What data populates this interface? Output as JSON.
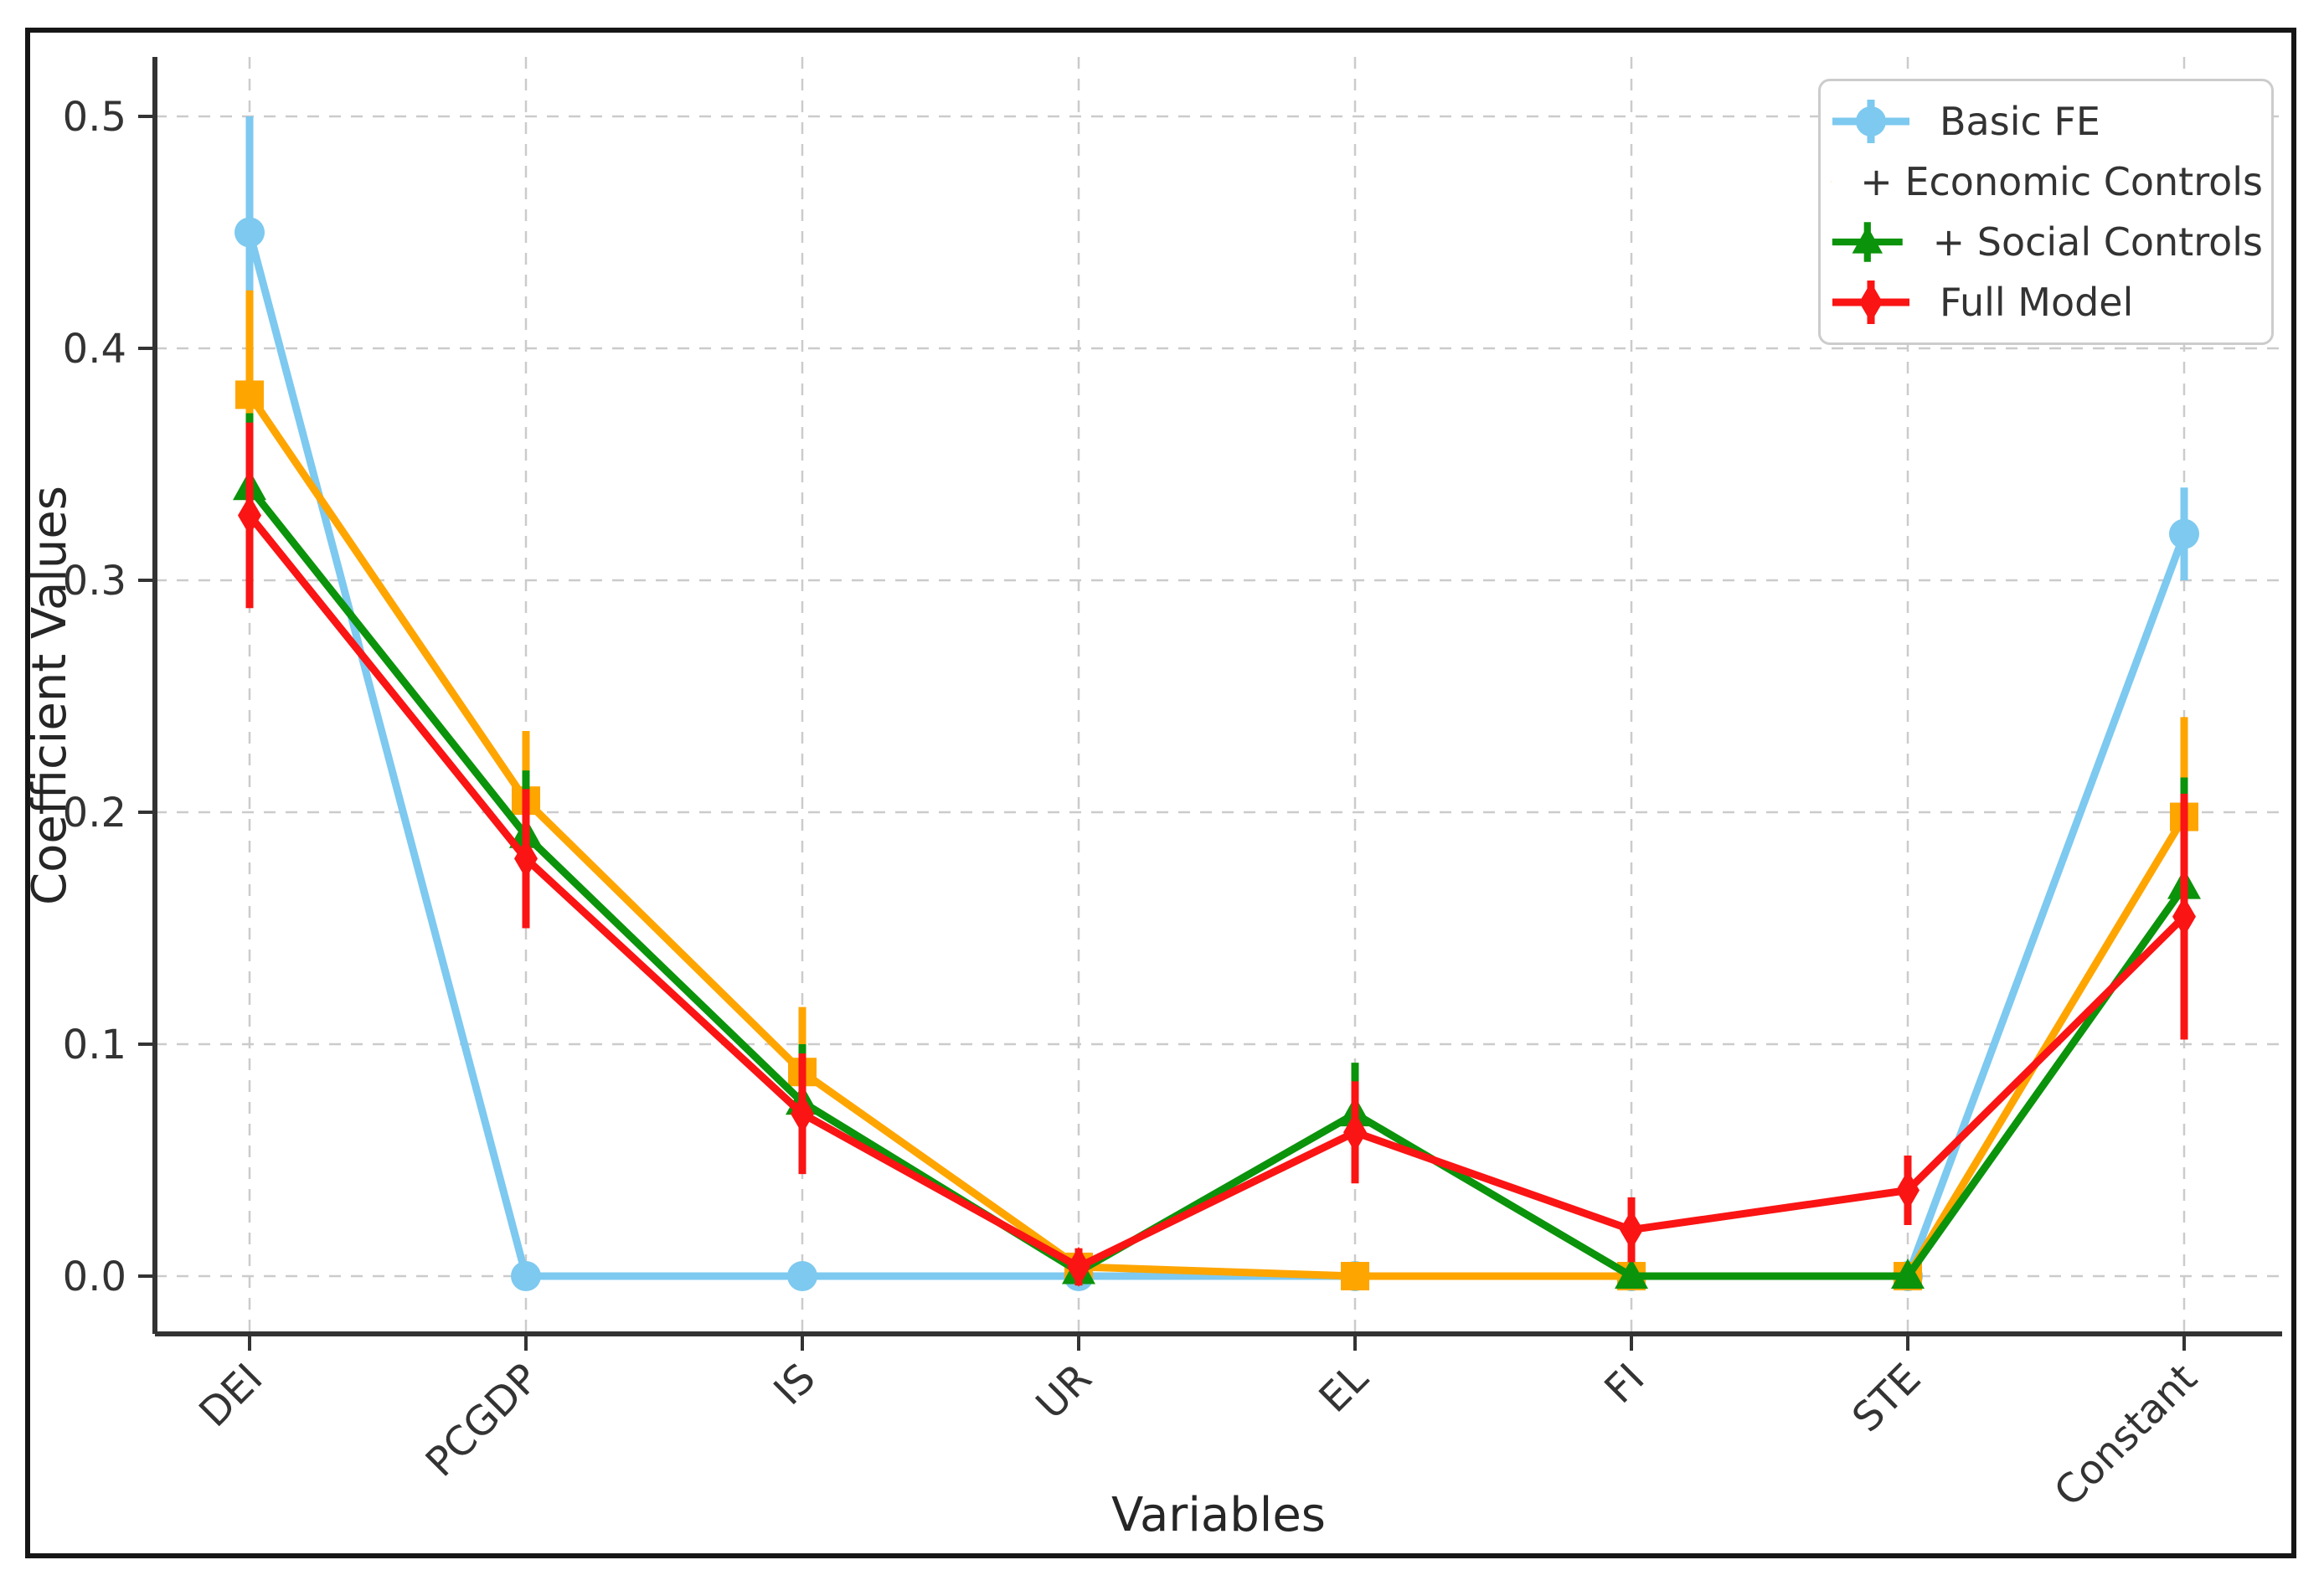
{
  "figure": {
    "background": "#ffffff",
    "border_color": "#161616",
    "grid_color": "#cbcbcb",
    "axis_color": "#333333",
    "text_color": "#333333",
    "legend_border_color": "#cccccc"
  },
  "chart_data": {
    "type": "line",
    "title": "",
    "xlabel": "Variables",
    "ylabel": "Coefficient Values",
    "categories": [
      "DEI",
      "PCGDP",
      "IS",
      "UR",
      "EL",
      "FI",
      "STE",
      "Constant"
    ],
    "yticks": [
      0.0,
      0.1,
      0.2,
      0.3,
      0.4,
      0.5
    ],
    "ytick_labels": [
      "0.0",
      "0.1",
      "0.2",
      "0.3",
      "0.4",
      "0.5"
    ],
    "ylim": [
      -0.025,
      0.526
    ],
    "grid": true,
    "grid_style": "dashed",
    "legend_position": "upper right",
    "error_bars": true,
    "series": [
      {
        "name": "Basic FE",
        "color": "#7DC9F0",
        "marker": "circle",
        "values": [
          0.45,
          0.0,
          0.0,
          0.0,
          0.0,
          0.0,
          0.0,
          0.32
        ],
        "errors": [
          0.05,
          0.0,
          0.0,
          0.0,
          0.0,
          0.0,
          0.0,
          0.02
        ]
      },
      {
        "name": "+ Economic Controls",
        "color": "#FFA500",
        "marker": "square",
        "values": [
          0.38,
          0.205,
          0.088,
          0.004,
          0.0,
          0.0,
          0.0,
          0.198
        ],
        "errors": [
          0.045,
          0.03,
          0.028,
          0.008,
          0.005,
          0.004,
          0.004,
          0.043
        ]
      },
      {
        "name": "+ Social Controls",
        "color": "#0B930B",
        "marker": "triangle",
        "values": [
          0.34,
          0.19,
          0.075,
          0.002,
          0.07,
          0.0,
          0.0,
          0.168
        ],
        "errors": [
          0.032,
          0.028,
          0.025,
          0.006,
          0.022,
          0.004,
          0.004,
          0.047
        ]
      },
      {
        "name": "Full Model",
        "color": "#FA1414",
        "marker": "diamond",
        "values": [
          0.328,
          0.18,
          0.07,
          0.004,
          0.062,
          0.02,
          0.037,
          0.155
        ],
        "errors": [
          0.04,
          0.03,
          0.026,
          0.008,
          0.022,
          0.014,
          0.015,
          0.053
        ]
      }
    ]
  }
}
